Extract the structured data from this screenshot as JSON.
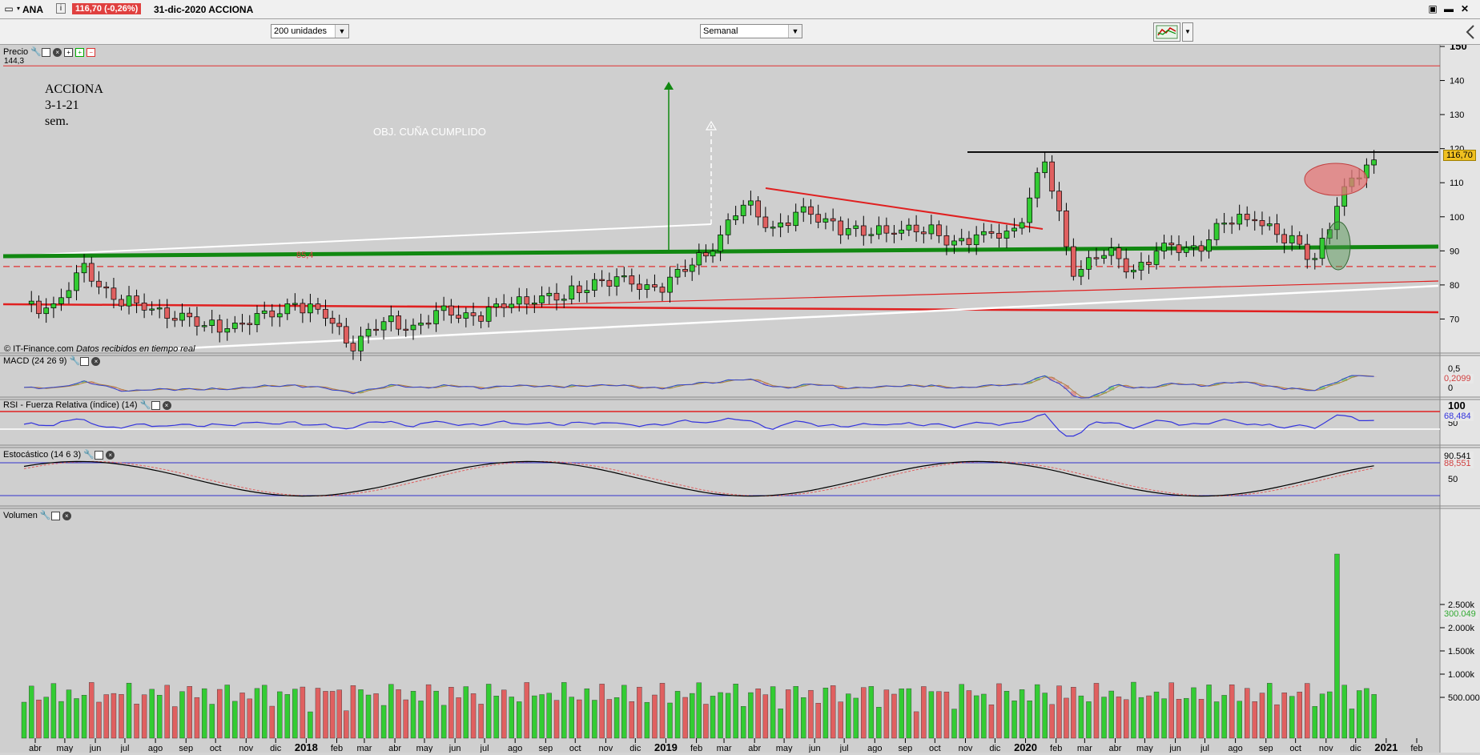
{
  "window": {
    "symbol": "ANA",
    "price_change": "116,70 (-0,26%)",
    "description": "31-dic-2020 ACCIONA"
  },
  "toolbar": {
    "units_select": "200 unidades",
    "period_select": "Semanal"
  },
  "panels": {
    "price_label": "Precio",
    "price_top_value": "144,3",
    "annotation_lines": [
      "ACCIONA",
      "3-1-21",
      "sem."
    ],
    "objective_text": "OBJ. CUÑA CUMPLIDO",
    "support_label": "85,4",
    "credit": "© IT-Finance.com",
    "credit_sub": "Datos recibidos en tiempo real",
    "last_price_tag": "116,70",
    "macd_label": "MACD (24 26 9)",
    "macd_value": "0,2099",
    "rsi_label": "RSI - Fuerza Relativa (índice) (14)",
    "rsi_value": "68,484",
    "stoch_label": "Estocástico (14 6 3)",
    "stoch_value_k": "90,541",
    "stoch_value_d": "88,551",
    "volume_label": "Volumen",
    "volume_value": "300.049"
  },
  "colors": {
    "up": "#33cc33",
    "down": "#e06060",
    "support": "#118811",
    "resistance": "#000000",
    "rsi": "#3333dd"
  },
  "chart_data": {
    "type": "candlestick",
    "title": "ACCIONA",
    "period": "Semanal",
    "x_start": "2017-04",
    "x_end": "2021-02",
    "price_axis": {
      "ylim": [
        60,
        150
      ],
      "ticks": [
        70,
        80,
        90,
        100,
        110,
        120,
        130,
        140,
        150
      ]
    },
    "x_labels": [
      "abr",
      "may",
      "jun",
      "jul",
      "ago",
      "sep",
      "oct",
      "nov",
      "dic",
      "2018",
      "feb",
      "mar",
      "abr",
      "may",
      "jun",
      "jul",
      "ago",
      "sep",
      "oct",
      "nov",
      "dic",
      "2019",
      "feb",
      "mar",
      "abr",
      "may",
      "jun",
      "jul",
      "ago",
      "sep",
      "oct",
      "nov",
      "dic",
      "2020",
      "feb",
      "mar",
      "abr",
      "may",
      "jun",
      "jul",
      "ago",
      "sep",
      "oct",
      "nov",
      "dic",
      "2021",
      "feb"
    ],
    "close_path": [
      [
        "2017-04",
        73.5
      ],
      [
        "2017-05",
        74.0
      ],
      [
        "2017-06",
        84.0
      ],
      [
        "2017-07",
        76.5
      ],
      [
        "2017-08",
        73.0
      ],
      [
        "2017-09",
        72.0
      ],
      [
        "2017-10",
        67.5
      ],
      [
        "2017-11",
        68.5
      ],
      [
        "2017-12",
        70.0
      ],
      [
        "2018-01",
        75.0
      ],
      [
        "2018-02",
        70.5
      ],
      [
        "2018-03",
        63.0
      ],
      [
        "2018-04",
        69.0
      ],
      [
        "2018-05",
        68.0
      ],
      [
        "2018-06",
        71.5
      ],
      [
        "2018-07",
        71.0
      ],
      [
        "2018-08",
        73.5
      ],
      [
        "2018-09",
        77.0
      ],
      [
        "2018-10",
        76.0
      ],
      [
        "2018-11",
        81.5
      ],
      [
        "2018-12",
        80.5
      ],
      [
        "2019-01",
        79.0
      ],
      [
        "2019-02",
        84.0
      ],
      [
        "2019-03",
        92.0
      ],
      [
        "2019-04",
        104.0
      ],
      [
        "2019-05",
        97.0
      ],
      [
        "2019-06",
        101.0
      ],
      [
        "2019-07",
        98.0
      ],
      [
        "2019-08",
        94.5
      ],
      [
        "2019-09",
        97.0
      ],
      [
        "2019-10",
        96.0
      ],
      [
        "2019-11",
        93.0
      ],
      [
        "2019-12",
        94.0
      ],
      [
        "2020-01",
        95.5
      ],
      [
        "2020-02",
        116.0
      ],
      [
        "2020-03",
        84.0
      ],
      [
        "2020-04",
        90.0
      ],
      [
        "2020-05",
        84.5
      ],
      [
        "2020-06",
        91.0
      ],
      [
        "2020-07",
        90.0
      ],
      [
        "2020-08",
        98.0
      ],
      [
        "2020-09",
        100.0
      ],
      [
        "2020-10",
        94.0
      ],
      [
        "2020-11",
        88.0
      ],
      [
        "2020-12",
        108.0
      ],
      [
        "2020-12-31",
        116.7
      ]
    ],
    "annotations": {
      "resistance": 119.0,
      "support_level": 85.4,
      "top_line": 144.3,
      "last_price": 116.7
    },
    "macd": {
      "ticks": [
        "0,5",
        "0"
      ],
      "last": 0.2099
    },
    "rsi": {
      "ticks": [
        100,
        50
      ],
      "last": 68.484
    },
    "stochastic": {
      "ticks": [
        50
      ],
      "k_last": 90.541,
      "d_last": 88.551
    },
    "volume": {
      "ticks": [
        "2.500k",
        "2.000k",
        "1.500k",
        "1.000k",
        "500.000"
      ],
      "last": 300049
    }
  }
}
